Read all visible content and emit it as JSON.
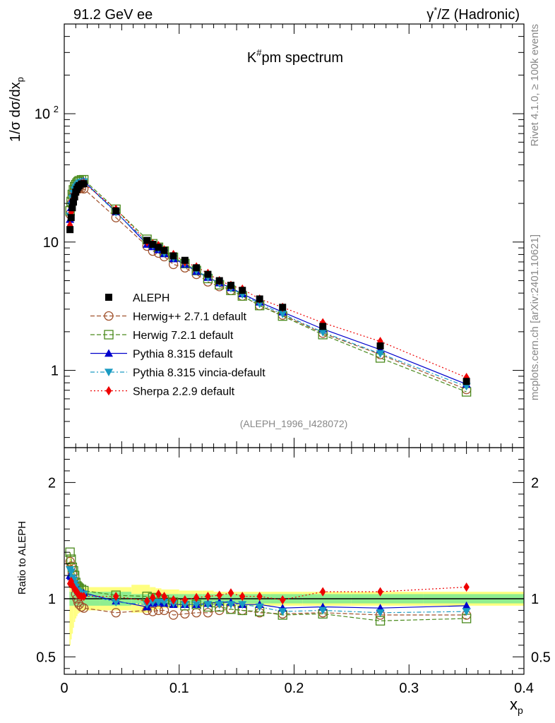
{
  "header": {
    "left": "91.2 GeV ee",
    "right_base": "γ",
    "right_sup": "*",
    "right_rest": "/Z (Hadronic)"
  },
  "side_labels": {
    "rivet": "Rivet 4.1.0, ≥ 100k events",
    "mcplots": "mcplots.cern.ch [arXiv:2401.10621]"
  },
  "chart_data": {
    "type": "scatter",
    "title_base": "K",
    "title_sup": "#",
    "title_rest": "pm spectrum",
    "reference": "(ALEPH_1996_I428072)",
    "main": {
      "ylabel_prefix": "1/σ  dσ/dx",
      "ylabel_sub": "p",
      "yscale": "log",
      "ylim": [
        0.25,
        500
      ],
      "yticks": [
        {
          "value": 1,
          "label": "1",
          "sup": ""
        },
        {
          "value": 10,
          "label": "10",
          "sup": ""
        },
        {
          "value": 100,
          "label": "10",
          "sup": "2"
        }
      ]
    },
    "ratio": {
      "ylabel": "Ratio to ALEPH",
      "ylim": [
        0.35,
        2.3
      ],
      "yticks": [
        {
          "value": 0.5,
          "label": "0.5"
        },
        {
          "value": 1,
          "label": "1"
        },
        {
          "value": 2,
          "label": "2"
        }
      ]
    },
    "xlabel_base": "x",
    "xlabel_sub": "p",
    "xlim": [
      0,
      0.4
    ],
    "xticks": [
      {
        "value": 0,
        "label": "0"
      },
      {
        "value": 0.1,
        "label": "0.1"
      },
      {
        "value": 0.2,
        "label": "0.2"
      },
      {
        "value": 0.3,
        "label": "0.3"
      },
      {
        "value": 0.4,
        "label": "0.4"
      }
    ],
    "x": [
      0.005,
      0.006,
      0.007,
      0.008,
      0.009,
      0.01,
      0.011,
      0.012,
      0.013,
      0.015,
      0.017,
      0.045,
      0.072,
      0.077,
      0.082,
      0.087,
      0.095,
      0.105,
      0.115,
      0.125,
      0.135,
      0.145,
      0.155,
      0.17,
      0.19,
      0.225,
      0.275,
      0.35
    ],
    "data": {
      "name": "ALEPH",
      "values": [
        12.5,
        15.5,
        18.5,
        20.5,
        22.5,
        24.5,
        25.8,
        26.8,
        27.5,
        28.3,
        28.5,
        17.5,
        10.3,
        9.6,
        9.1,
        8.6,
        7.8,
        7.2,
        6.3,
        5.6,
        5.0,
        4.6,
        4.2,
        3.6,
        3.1,
        2.2,
        1.55,
        0.82
      ],
      "band_inner": [
        0.06,
        0.06,
        0.06,
        0.06,
        0.06,
        0.06,
        0.06,
        0.06,
        0.06,
        0.06,
        0.06,
        0.06,
        0.04,
        0.04,
        0.04,
        0.04,
        0.04,
        0.04,
        0.04,
        0.04,
        0.04,
        0.04,
        0.04,
        0.04,
        0.04,
        0.04,
        0.04,
        0.04
      ],
      "band_outer": [
        0.4,
        0.35,
        0.3,
        0.25,
        0.2,
        0.17,
        0.15,
        0.13,
        0.12,
        0.1,
        0.1,
        0.1,
        0.12,
        0.1,
        0.09,
        0.08,
        0.08,
        0.07,
        0.07,
        0.07,
        0.06,
        0.06,
        0.06,
        0.06,
        0.06,
        0.06,
        0.06,
        0.06
      ]
    },
    "series": [
      {
        "name": "Herwig++ 2.7.1 default",
        "color": "#a0522d",
        "dash": "6,3",
        "marker": "circle-open",
        "values": [
          16.5,
          19.8,
          22.5,
          24.0,
          25.2,
          25.5,
          25.8,
          26.0,
          26.0,
          26.2,
          26.0,
          15.5,
          9.3,
          8.5,
          8.2,
          7.7,
          6.7,
          6.3,
          5.6,
          4.9,
          4.5,
          4.2,
          3.8,
          3.2,
          2.7,
          1.95,
          1.33,
          0.71
        ],
        "ratios": [
          1.32,
          1.28,
          1.22,
          1.17,
          1.12,
          1.04,
          1.0,
          0.97,
          0.95,
          0.93,
          0.92,
          0.88,
          0.9,
          0.89,
          0.9,
          0.9,
          0.86,
          0.87,
          0.88,
          0.88,
          0.9,
          0.91,
          0.9,
          0.88,
          0.87,
          0.88,
          0.86,
          0.86
        ]
      },
      {
        "name": "Herwig 7.2.1 default",
        "color": "#4a8a1c",
        "dash": "6,3",
        "marker": "square-open",
        "values": [
          17.5,
          20.7,
          23.5,
          25.5,
          27.0,
          28.0,
          28.8,
          29.5,
          30.0,
          30.5,
          30.6,
          18.0,
          10.5,
          9.7,
          9.1,
          8.5,
          7.6,
          6.8,
          6.0,
          5.2,
          4.65,
          4.2,
          3.8,
          3.2,
          2.65,
          1.9,
          1.25,
          0.68
        ],
        "ratios": [
          1.4,
          1.34,
          1.27,
          1.24,
          1.2,
          1.14,
          1.11,
          1.1,
          1.09,
          1.08,
          1.07,
          1.03,
          1.02,
          1.01,
          1.0,
          0.99,
          0.97,
          0.94,
          0.95,
          0.93,
          0.93,
          0.91,
          0.9,
          0.89,
          0.86,
          0.87,
          0.81,
          0.83
        ]
      },
      {
        "name": "Pythia 8.315 default",
        "color": "#0000cc",
        "dash": "",
        "marker": "triangle-up",
        "values": [
          15.0,
          18.5,
          21.5,
          23.5,
          25.0,
          26.5,
          27.5,
          28.3,
          29.0,
          29.5,
          29.8,
          17.2,
          9.6,
          9.2,
          8.7,
          8.1,
          7.4,
          6.7,
          5.9,
          5.3,
          4.8,
          4.4,
          3.95,
          3.4,
          2.85,
          2.1,
          1.45,
          0.78
        ],
        "ratios": [
          1.2,
          1.19,
          1.16,
          1.14,
          1.12,
          1.1,
          1.1,
          1.07,
          1.06,
          1.05,
          1.05,
          0.98,
          0.93,
          0.96,
          0.97,
          0.96,
          0.95,
          0.95,
          0.95,
          0.96,
          0.97,
          0.97,
          0.95,
          0.95,
          0.92,
          0.93,
          0.92,
          0.94
        ]
      },
      {
        "name": "Pythia 8.315 vincia-default",
        "color": "#1a9bc2",
        "dash": "6,3,2,3",
        "marker": "triangle-down",
        "values": [
          16.0,
          19.2,
          22.0,
          24.0,
          25.5,
          26.5,
          27.3,
          28.0,
          28.8,
          29.3,
          29.5,
          17.0,
          10.0,
          9.4,
          8.9,
          8.2,
          7.5,
          6.8,
          6.0,
          5.3,
          4.75,
          4.35,
          3.9,
          3.3,
          2.75,
          1.98,
          1.35,
          0.75
        ],
        "ratios": [
          1.25,
          1.23,
          1.18,
          1.16,
          1.13,
          1.1,
          1.07,
          1.06,
          1.05,
          1.04,
          1.04,
          0.97,
          0.95,
          0.97,
          0.97,
          0.97,
          0.96,
          0.95,
          0.95,
          0.95,
          0.95,
          0.95,
          0.95,
          0.93,
          0.89,
          0.9,
          0.88,
          0.89
        ]
      },
      {
        "name": "Sherpa 2.2.9 default",
        "color": "#ee0000",
        "dash": "2,3",
        "marker": "diamond",
        "values": [
          13.5,
          17.0,
          19.5,
          22.0,
          24.0,
          25.5,
          26.5,
          27.3,
          28.0,
          28.5,
          28.7,
          18.0,
          10.0,
          9.7,
          9.4,
          8.7,
          8.0,
          7.0,
          6.4,
          5.7,
          5.0,
          4.6,
          4.3,
          3.6,
          3.1,
          2.35,
          1.68,
          0.88
        ],
        "ratios": [
          1.13,
          1.15,
          1.12,
          1.1,
          1.08,
          1.07,
          1.06,
          1.04,
          1.03,
          1.02,
          1.02,
          1.02,
          0.98,
          1.01,
          1.04,
          1.02,
          0.99,
          0.99,
          1.01,
          1.02,
          1.03,
          1.05,
          1.02,
          1.02,
          0.99,
          1.06,
          1.06,
          1.1
        ]
      }
    ]
  }
}
